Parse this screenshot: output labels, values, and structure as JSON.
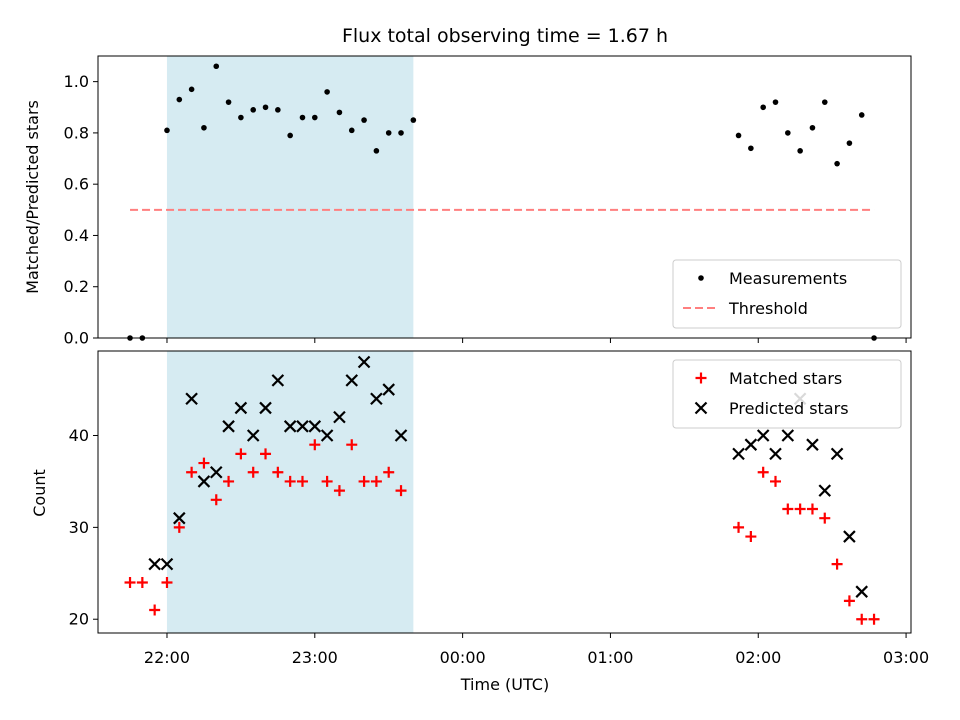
{
  "chart_data": [
    {
      "type": "scatter",
      "title": "Flux total observing time = 1.67 h",
      "ylabel": "Matched/Predicted stars",
      "xlabel": "",
      "xlim": [
        "21:32",
        "03:02"
      ],
      "ylim": [
        0,
        1.1
      ],
      "yticks": [
        "0.0",
        "0.2",
        "0.4",
        "0.6",
        "0.8",
        "1.0"
      ],
      "shaded_region": {
        "x_start": "22:00",
        "x_end": "23:40",
        "color": "#add8e6"
      },
      "legend_position": "lower-right",
      "series": [
        {
          "name": "Measurements",
          "marker": "dot",
          "color": "#000000",
          "points": [
            [
              "21:45",
              0.0
            ],
            [
              "21:50",
              0.0
            ],
            [
              "22:00",
              0.81
            ],
            [
              "22:05",
              0.93
            ],
            [
              "22:10",
              0.97
            ],
            [
              "22:15",
              0.82
            ],
            [
              "22:20",
              1.06
            ],
            [
              "22:25",
              0.92
            ],
            [
              "22:30",
              0.86
            ],
            [
              "22:35",
              0.89
            ],
            [
              "22:40",
              0.9
            ],
            [
              "22:45",
              0.89
            ],
            [
              "22:50",
              0.79
            ],
            [
              "22:55",
              0.86
            ],
            [
              "23:00",
              0.86
            ],
            [
              "23:05",
              0.96
            ],
            [
              "23:10",
              0.88
            ],
            [
              "23:15",
              0.81
            ],
            [
              "23:20",
              0.85
            ],
            [
              "23:25",
              0.73
            ],
            [
              "23:30",
              0.8
            ],
            [
              "23:35",
              0.8
            ],
            [
              "23:40",
              0.85
            ],
            [
              "01:52",
              0.79
            ],
            [
              "01:57",
              0.74
            ],
            [
              "02:02",
              0.9
            ],
            [
              "02:07",
              0.92
            ],
            [
              "02:12",
              0.8
            ],
            [
              "02:17",
              0.73
            ],
            [
              "02:22",
              0.82
            ],
            [
              "02:27",
              0.92
            ],
            [
              "02:32",
              0.68
            ],
            [
              "02:37",
              0.76
            ],
            [
              "02:42",
              0.87
            ],
            [
              "02:47",
              0.0
            ]
          ]
        },
        {
          "name": "Threshold",
          "type": "line",
          "style": "dashed",
          "color": "#ff7f7f",
          "points": [
            [
              "21:45",
              0.5
            ],
            [
              "02:47",
              0.5
            ]
          ]
        }
      ]
    },
    {
      "type": "scatter",
      "title": "",
      "ylabel": "Count",
      "xlabel": "Time (UTC)",
      "xlim": [
        "21:32",
        "03:02"
      ],
      "ylim": [
        18.5,
        49.2
      ],
      "yticks": [
        "20",
        "30",
        "40"
      ],
      "xticks": [
        "22:00",
        "23:00",
        "00:00",
        "01:00",
        "02:00",
        "03:00"
      ],
      "shaded_region": {
        "x_start": "22:00",
        "x_end": "23:40",
        "color": "#add8e6"
      },
      "legend_position": "upper-right",
      "series": [
        {
          "name": "Matched stars",
          "marker": "plus",
          "color": "#ff0000",
          "points": [
            [
              "21:45",
              24
            ],
            [
              "21:50",
              24
            ],
            [
              "21:55",
              21
            ],
            [
              "22:00",
              24
            ],
            [
              "22:05",
              30
            ],
            [
              "22:10",
              36
            ],
            [
              "22:15",
              37
            ],
            [
              "22:20",
              33
            ],
            [
              "22:25",
              35
            ],
            [
              "22:30",
              38
            ],
            [
              "22:35",
              36
            ],
            [
              "22:40",
              38
            ],
            [
              "22:45",
              36
            ],
            [
              "22:50",
              35
            ],
            [
              "22:55",
              35
            ],
            [
              "23:00",
              39
            ],
            [
              "23:05",
              35
            ],
            [
              "23:10",
              34
            ],
            [
              "23:15",
              39
            ],
            [
              "23:20",
              35
            ],
            [
              "23:25",
              35
            ],
            [
              "23:30",
              36
            ],
            [
              "23:35",
              34
            ],
            [
              "01:52",
              30
            ],
            [
              "01:57",
              29
            ],
            [
              "02:02",
              36
            ],
            [
              "02:07",
              35
            ],
            [
              "02:12",
              32
            ],
            [
              "02:17",
              32
            ],
            [
              "02:22",
              32
            ],
            [
              "02:27",
              31
            ],
            [
              "02:32",
              26
            ],
            [
              "02:37",
              22
            ],
            [
              "02:42",
              20
            ],
            [
              "02:47",
              20
            ]
          ]
        },
        {
          "name": "Predicted stars",
          "marker": "x",
          "color": "#000000",
          "points": [
            [
              "21:55",
              26
            ],
            [
              "22:00",
              26
            ],
            [
              "22:05",
              31
            ],
            [
              "22:10",
              44
            ],
            [
              "22:15",
              35
            ],
            [
              "22:20",
              36
            ],
            [
              "22:25",
              41
            ],
            [
              "22:30",
              43
            ],
            [
              "22:35",
              40
            ],
            [
              "22:40",
              43
            ],
            [
              "22:45",
              46
            ],
            [
              "22:50",
              41
            ],
            [
              "22:55",
              41
            ],
            [
              "23:00",
              41
            ],
            [
              "23:05",
              40
            ],
            [
              "23:10",
              42
            ],
            [
              "23:15",
              46
            ],
            [
              "23:20",
              48
            ],
            [
              "23:25",
              44
            ],
            [
              "23:30",
              45
            ],
            [
              "23:35",
              40
            ],
            [
              "01:52",
              38
            ],
            [
              "01:57",
              39
            ],
            [
              "02:02",
              40
            ],
            [
              "02:07",
              38
            ],
            [
              "02:12",
              40
            ],
            [
              "02:17",
              44
            ],
            [
              "02:22",
              39
            ],
            [
              "02:27",
              34
            ],
            [
              "02:32",
              38
            ],
            [
              "02:37",
              29
            ],
            [
              "02:42",
              23
            ]
          ]
        }
      ]
    }
  ]
}
